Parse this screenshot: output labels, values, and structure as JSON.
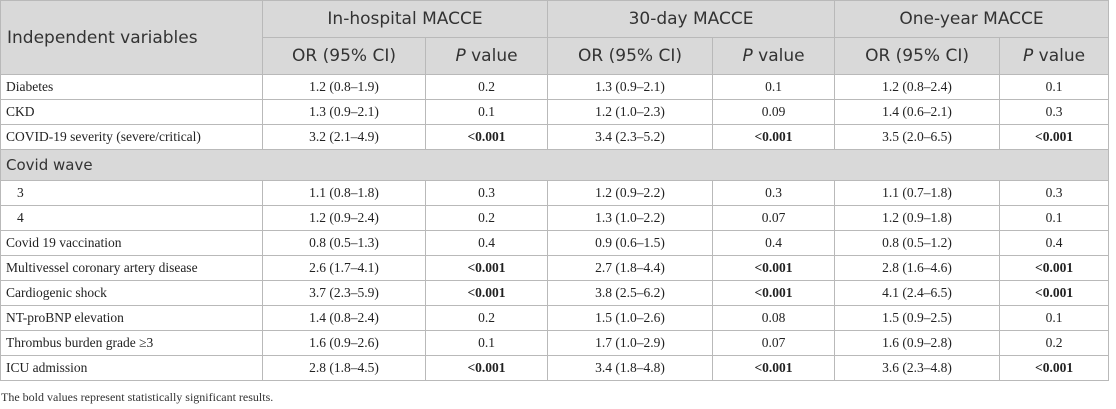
{
  "header": {
    "independent_variables": "Independent variables",
    "groups": [
      "In-hospital MACCE",
      "30-day MACCE",
      "One-year MACCE"
    ],
    "or_label": "OR (95% CI)",
    "p_italic": "P",
    "p_rest": " value"
  },
  "rows": [
    {
      "type": "row",
      "label": "Diabetes",
      "sub": false,
      "cells": [
        {
          "v": "1.2 (0.8–1.9)",
          "b": false
        },
        {
          "v": "0.2",
          "b": false
        },
        {
          "v": "1.3 (0.9–2.1)",
          "b": false
        },
        {
          "v": "0.1",
          "b": false
        },
        {
          "v": "1.2 (0.8–2.4)",
          "b": false
        },
        {
          "v": "0.1",
          "b": false
        }
      ]
    },
    {
      "type": "row",
      "label": "CKD",
      "sub": false,
      "cells": [
        {
          "v": "1.3 (0.9–2.1)",
          "b": false
        },
        {
          "v": "0.1",
          "b": false
        },
        {
          "v": "1.2 (1.0–2.3)",
          "b": false
        },
        {
          "v": "0.09",
          "b": false
        },
        {
          "v": "1.4 (0.6–2.1)",
          "b": false
        },
        {
          "v": "0.3",
          "b": false
        }
      ]
    },
    {
      "type": "row",
      "label": "COVID-19 severity (severe/critical)",
      "sub": false,
      "cells": [
        {
          "v": "3.2 (2.1–4.9)",
          "b": false
        },
        {
          "v": "<0.001",
          "b": true
        },
        {
          "v": "3.4 (2.3–5.2)",
          "b": false
        },
        {
          "v": "<0.001",
          "b": true
        },
        {
          "v": "3.5 (2.0–6.5)",
          "b": false
        },
        {
          "v": "<0.001",
          "b": true
        }
      ]
    },
    {
      "type": "section",
      "label": "Covid wave"
    },
    {
      "type": "row",
      "label": "3",
      "sub": true,
      "cells": [
        {
          "v": "1.1 (0.8–1.8)",
          "b": false
        },
        {
          "v": "0.3",
          "b": false
        },
        {
          "v": "1.2 (0.9–2.2)",
          "b": false
        },
        {
          "v": "0.3",
          "b": false
        },
        {
          "v": "1.1 (0.7–1.8)",
          "b": false
        },
        {
          "v": "0.3",
          "b": false
        }
      ]
    },
    {
      "type": "row",
      "label": "4",
      "sub": true,
      "cells": [
        {
          "v": "1.2 (0.9–2.4)",
          "b": false
        },
        {
          "v": "0.2",
          "b": false
        },
        {
          "v": "1.3 (1.0–2.2)",
          "b": false
        },
        {
          "v": "0.07",
          "b": false
        },
        {
          "v": "1.2 (0.9–1.8)",
          "b": false
        },
        {
          "v": "0.1",
          "b": false
        }
      ]
    },
    {
      "type": "row",
      "label": "Covid 19 vaccination",
      "sub": false,
      "cells": [
        {
          "v": "0.8 (0.5–1.3)",
          "b": false
        },
        {
          "v": "0.4",
          "b": false
        },
        {
          "v": "0.9 (0.6–1.5)",
          "b": false
        },
        {
          "v": "0.4",
          "b": false
        },
        {
          "v": "0.8 (0.5–1.2)",
          "b": false
        },
        {
          "v": "0.4",
          "b": false
        }
      ]
    },
    {
      "type": "row",
      "label": "Multivessel coronary artery disease",
      "sub": false,
      "cells": [
        {
          "v": "2.6 (1.7–4.1)",
          "b": false
        },
        {
          "v": "<0.001",
          "b": true
        },
        {
          "v": "2.7 (1.8–4.4)",
          "b": false
        },
        {
          "v": "<0.001",
          "b": true
        },
        {
          "v": "2.8 (1.6–4.6)",
          "b": false
        },
        {
          "v": "<0.001",
          "b": true
        }
      ]
    },
    {
      "type": "row",
      "label": "Cardiogenic shock",
      "sub": false,
      "cells": [
        {
          "v": "3.7 (2.3–5.9)",
          "b": false
        },
        {
          "v": "<0.001",
          "b": true
        },
        {
          "v": "3.8 (2.5–6.2)",
          "b": false
        },
        {
          "v": "<0.001",
          "b": true
        },
        {
          "v": "4.1 (2.4–6.5)",
          "b": false
        },
        {
          "v": "<0.001",
          "b": true
        }
      ]
    },
    {
      "type": "row",
      "label": "NT-proBNP elevation",
      "sub": false,
      "cells": [
        {
          "v": "1.4 (0.8–2.4)",
          "b": false
        },
        {
          "v": "0.2",
          "b": false
        },
        {
          "v": "1.5 (1.0–2.6)",
          "b": false
        },
        {
          "v": "0.08",
          "b": false
        },
        {
          "v": "1.5 (0.9–2.5)",
          "b": false
        },
        {
          "v": "0.1",
          "b": false
        }
      ]
    },
    {
      "type": "row",
      "label": "Thrombus burden grade ≥3",
      "sub": false,
      "cells": [
        {
          "v": "1.6 (0.9–2.6)",
          "b": false
        },
        {
          "v": "0.1",
          "b": false
        },
        {
          "v": "1.7 (1.0–2.9)",
          "b": false
        },
        {
          "v": "0.07",
          "b": false
        },
        {
          "v": "1.6 (0.9–2.8)",
          "b": false
        },
        {
          "v": "0.2",
          "b": false
        }
      ]
    },
    {
      "type": "row",
      "label": "ICU admission",
      "sub": false,
      "cells": [
        {
          "v": "2.8 (1.8–4.5)",
          "b": false
        },
        {
          "v": "<0.001",
          "b": true
        },
        {
          "v": "3.4 (1.8–4.8)",
          "b": false
        },
        {
          "v": "<0.001",
          "b": true
        },
        {
          "v": "3.6 (2.3–4.8)",
          "b": false
        },
        {
          "v": "<0.001",
          "b": true
        }
      ]
    }
  ],
  "footnote": "The bold values represent statistically significant results."
}
